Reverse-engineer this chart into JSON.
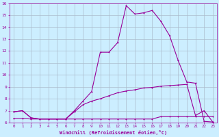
{
  "xlabel": "Windchill (Refroidissement éolien,°C)",
  "xlim": [
    -0.5,
    23.5
  ],
  "ylim": [
    6,
    16
  ],
  "yticks": [
    6,
    7,
    8,
    9,
    10,
    11,
    12,
    13,
    14,
    15,
    16
  ],
  "xticks": [
    0,
    1,
    2,
    3,
    4,
    5,
    6,
    7,
    8,
    9,
    10,
    11,
    12,
    13,
    14,
    15,
    16,
    17,
    18,
    19,
    20,
    21,
    22,
    23
  ],
  "background_color": "#cceeff",
  "grid_color": "#aabbcc",
  "line_color": "#990099",
  "line1_x": [
    0,
    1,
    2,
    3,
    4,
    5,
    6,
    7,
    8,
    9,
    10,
    11,
    12,
    13,
    14,
    15,
    16,
    17,
    18,
    19,
    20,
    21,
    22,
    23
  ],
  "line1_y": [
    6.9,
    7.0,
    6.4,
    6.3,
    6.3,
    6.3,
    6.3,
    7.0,
    7.8,
    8.6,
    11.9,
    11.9,
    12.7,
    15.8,
    15.1,
    15.2,
    15.4,
    14.5,
    13.3,
    11.2,
    9.4,
    9.3,
    6.1,
    6.05
  ],
  "line2_x": [
    0,
    1,
    2,
    3,
    4,
    5,
    6,
    7,
    8,
    9,
    10,
    11,
    12,
    13,
    14,
    15,
    16,
    17,
    18,
    19,
    20,
    21,
    22,
    23
  ],
  "line2_y": [
    6.35,
    6.35,
    6.3,
    6.3,
    6.3,
    6.3,
    6.3,
    6.3,
    6.3,
    6.3,
    6.3,
    6.3,
    6.3,
    6.3,
    6.3,
    6.3,
    6.3,
    6.5,
    6.5,
    6.5,
    6.5,
    6.5,
    6.5,
    6.5
  ],
  "line3_x": [
    0,
    1,
    2,
    3,
    4,
    5,
    6,
    7,
    8,
    9,
    10,
    11,
    12,
    13,
    14,
    15,
    16,
    17,
    18,
    19,
    20,
    21,
    22,
    23
  ],
  "line3_y": [
    6.9,
    7.0,
    6.4,
    6.3,
    6.3,
    6.3,
    6.3,
    6.9,
    7.5,
    7.8,
    8.0,
    8.25,
    8.5,
    8.65,
    8.75,
    8.9,
    8.95,
    9.05,
    9.1,
    9.15,
    9.2,
    6.6,
    7.0,
    6.05
  ]
}
